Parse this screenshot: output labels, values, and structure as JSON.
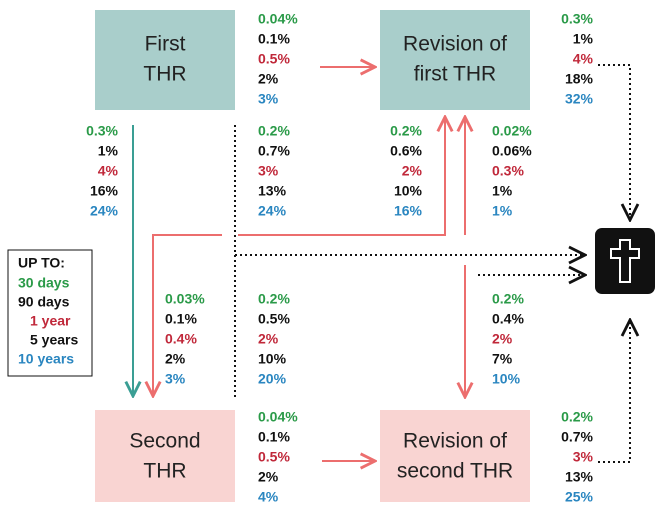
{
  "nodes": [
    {
      "label": [
        "First",
        "THR"
      ]
    },
    {
      "label": [
        "Revision of",
        "first THR"
      ]
    },
    {
      "label": [
        "Second",
        "THR"
      ]
    },
    {
      "label": [
        "Revision of",
        "second THR"
      ]
    }
  ],
  "groups": [
    [
      "0.04%",
      "0.1%",
      "0.5%",
      "2%",
      "3%"
    ],
    [
      "0.3%",
      "1%",
      "4%",
      "18%",
      "32%"
    ],
    [
      "0.3%",
      "1%",
      "4%",
      "16%",
      "24%"
    ],
    [
      "0.2%",
      "0.7%",
      "3%",
      "13%",
      "24%"
    ],
    [
      "0.2%",
      "0.6%",
      "2%",
      "10%",
      "16%"
    ],
    [
      "0.02%",
      "0.06%",
      "0.3%",
      "1%",
      "1%"
    ],
    [
      "0.03%",
      "0.1%",
      "0.4%",
      "2%",
      "3%"
    ],
    [
      "0.2%",
      "0.5%",
      "2%",
      "10%",
      "20%"
    ],
    [
      "0.2%",
      "0.4%",
      "2%",
      "7%",
      "10%"
    ],
    [
      "0.04%",
      "0.1%",
      "0.5%",
      "2%",
      "4%"
    ],
    [
      "0.2%",
      "0.7%",
      "3%",
      "13%",
      "25%"
    ]
  ],
  "legend": {
    "title": "UP TO:",
    "items": [
      "30 days",
      "90 days",
      "1 year",
      "5 years",
      "10 years"
    ]
  }
}
